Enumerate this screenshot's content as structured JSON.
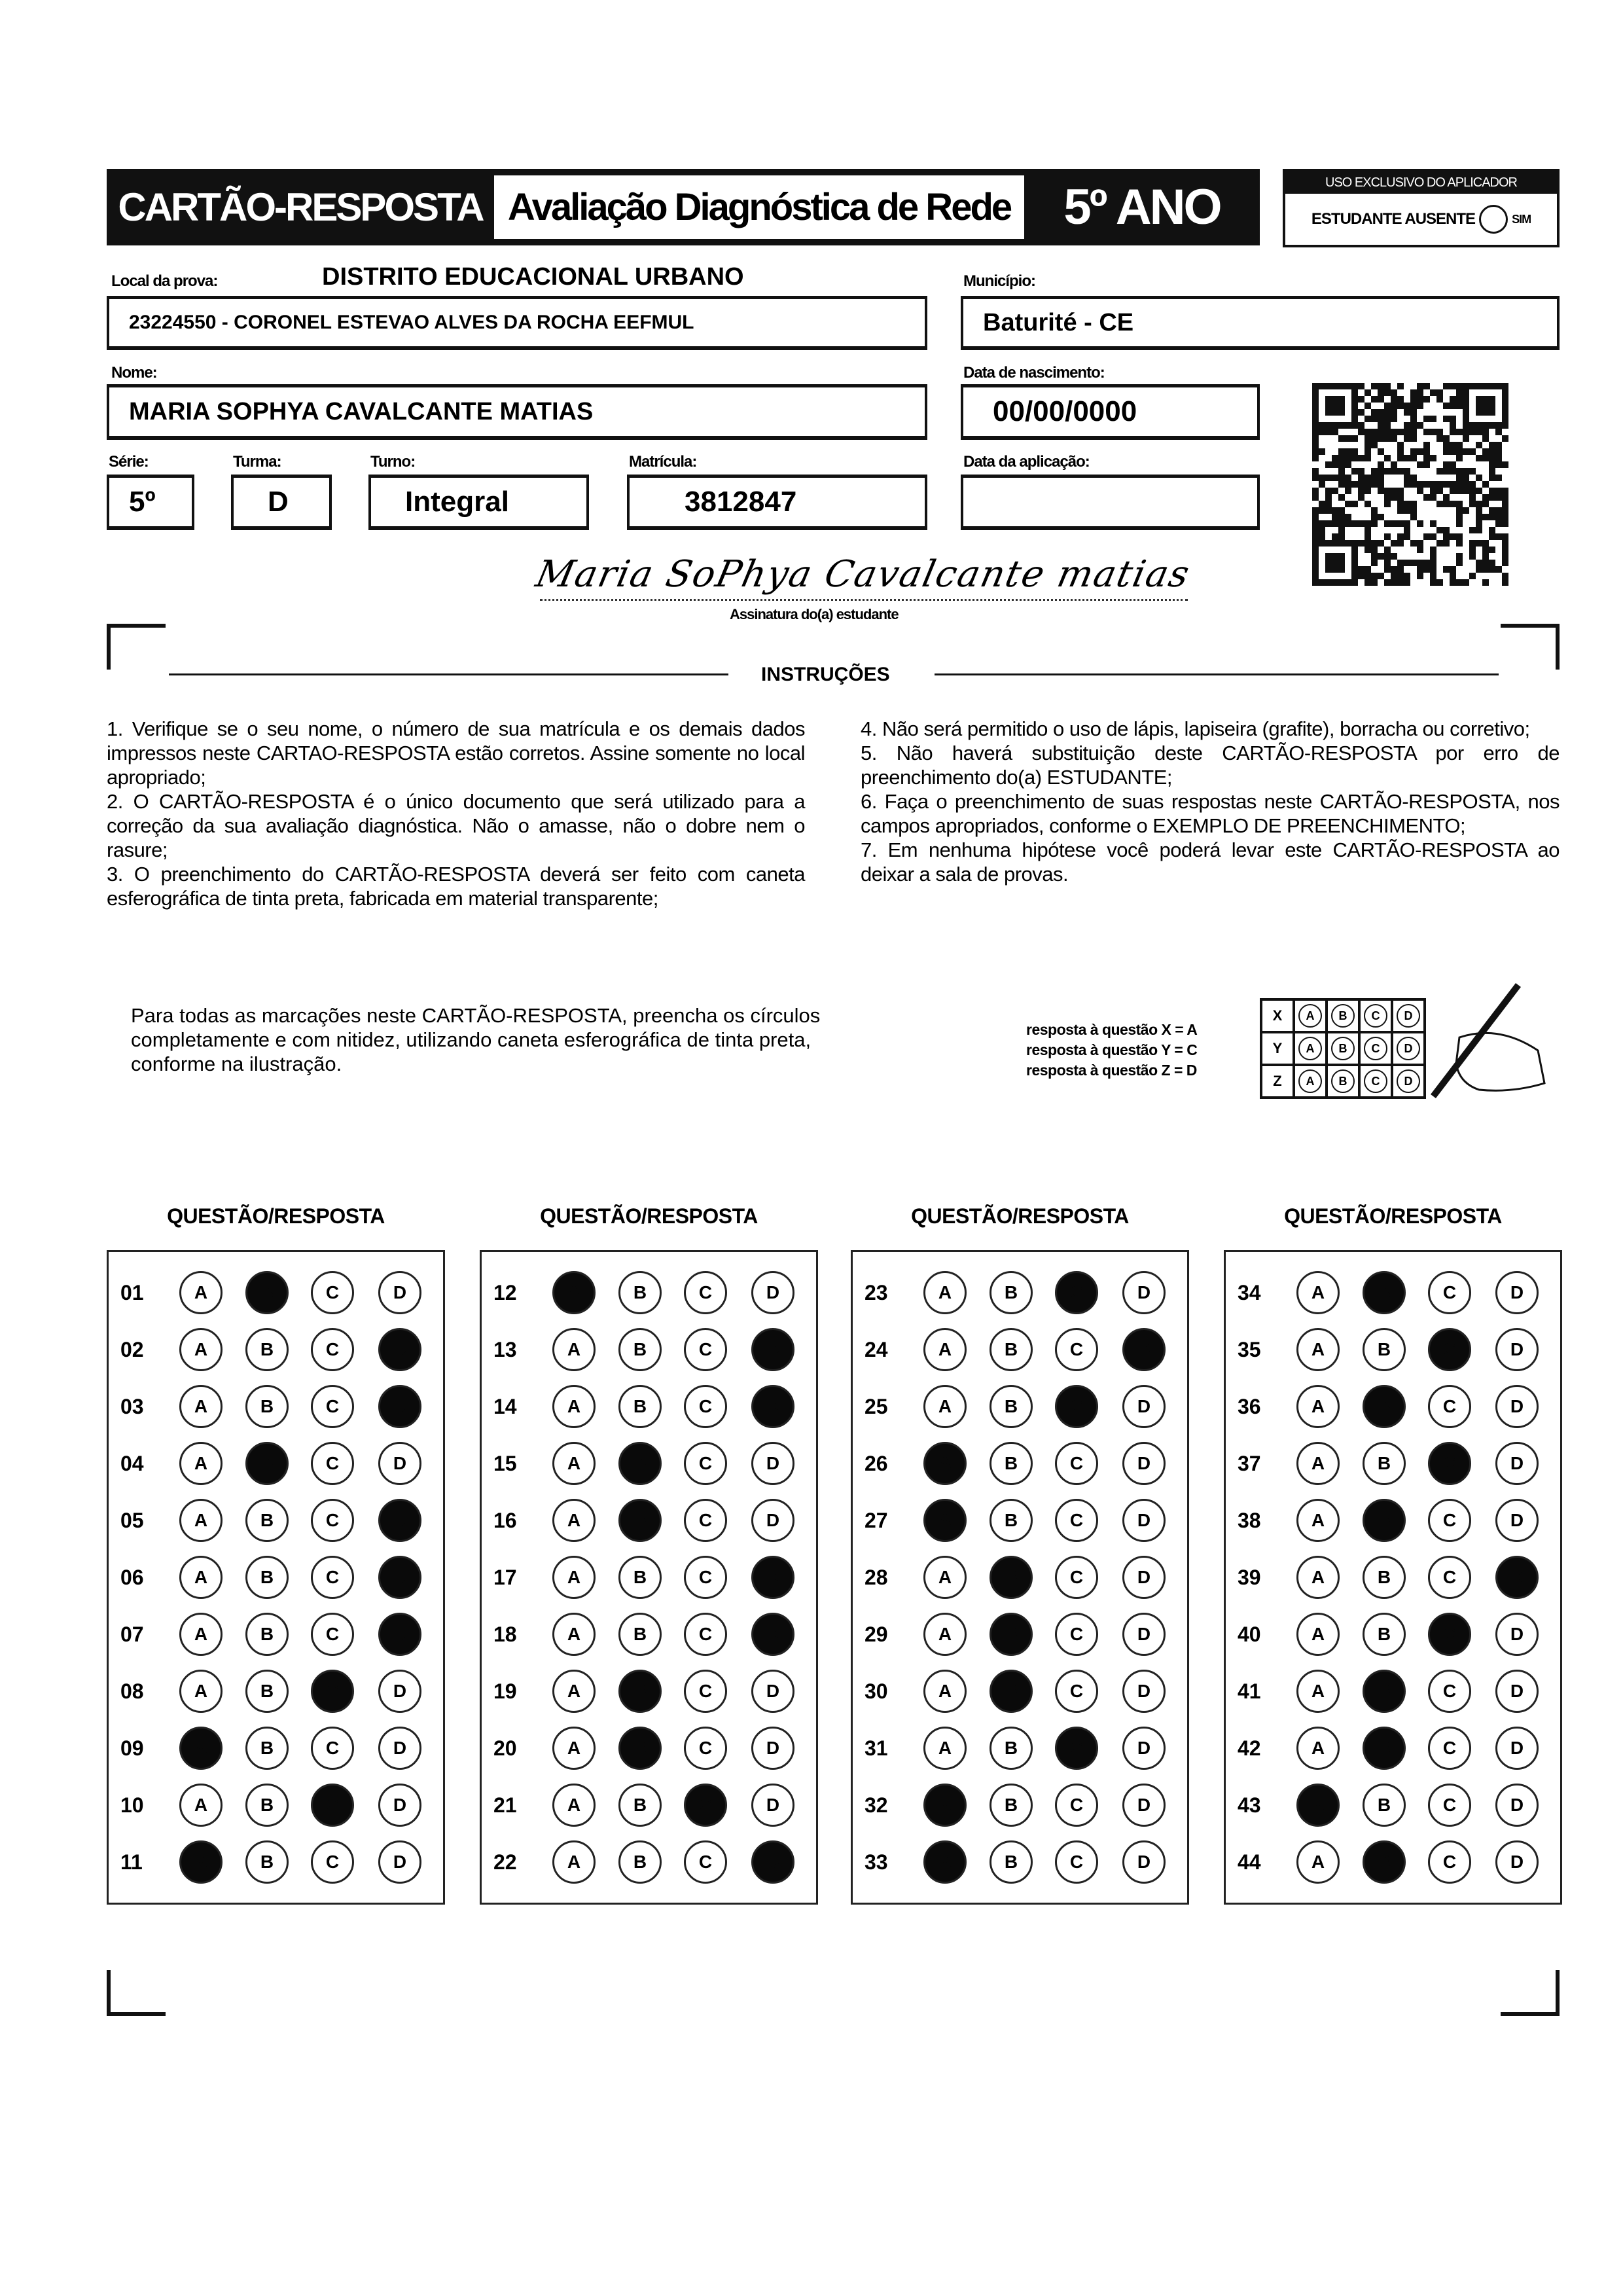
{
  "header": {
    "title": "CARTÃO-RESPOSTA",
    "subtitle": "Avaliação Diagnóstica de Rede",
    "grade": "5º ANO",
    "applicator_label": "USO EXCLUSIVO DO APLICADOR",
    "absent_label": "ESTUDANTE AUSENTE",
    "absent_option": "SIM"
  },
  "fields": {
    "local_label": "Local da prova:",
    "local_value": "DISTRITO EDUCACIONAL URBANO",
    "school": "23224550 - CORONEL ESTEVAO ALVES DA ROCHA EEFMUL",
    "municipio_label": "Município:",
    "municipio": "Baturité - CE",
    "nome_label": "Nome:",
    "nome": "MARIA SOPHYA CAVALCANTE MATIAS",
    "nasc_label": "Data de nascimento:",
    "nasc": "00/00/0000",
    "serie_label": "Série:",
    "serie": "5º",
    "turma_label": "Turma:",
    "turma": "D",
    "turno_label": "Turno:",
    "turno": "Integral",
    "matricula_label": "Matrícula:",
    "matricula": "3812847",
    "aplicacao_label": "Data da aplicação:",
    "aplicacao": "",
    "signature": "Maria SoPhya Cavalcante matias",
    "signature_label": "Assinatura do(a) estudante"
  },
  "instructions": {
    "title": "INSTRUÇÕES",
    "left": [
      "1. Verifique se o seu nome, o número de sua matrícula e os demais dados impressos neste CARTAO-RESPOSTA estão corretos. Assine somente no local apropriado;",
      "2. O CARTÃO-RESPOSTA é o único documento que será utilizado para a correção da sua avaliação diagnóstica. Não o amasse, não o dobre nem o rasure;",
      "3. O preenchimento do CARTÃO-RESPOSTA deverá ser feito com caneta esferográfica de tinta preta, fabricada em material transparente;"
    ],
    "right": [
      "4. Não será permitido o uso de lápis, lapiseira (grafite), borracha ou corretivo;",
      "5. Não haverá substituição deste CARTÃO-RESPOSTA por erro de preenchimento do(a) ESTUDANTE;",
      "6. Faça o preenchimento de suas respostas neste CARTÃO-RESPOSTA, nos campos apropriados, conforme o EXEMPLO DE PREENCHIMENTO;",
      "7. Em nenhuma hipótese você poderá levar este CARTÃO-RESPOSTA ao deixar a sala de provas."
    ]
  },
  "example": {
    "text": "Para todas as marcações neste CARTÃO-RESPOSTA, preencha os círculos completamente e com nitidez, utilizando caneta esferográfica de tinta preta, conforme na ilustração.",
    "legend": [
      "resposta à questão X = A",
      "resposta à questão Y = C",
      "resposta à questão Z = D"
    ],
    "rows": [
      {
        "q": "X",
        "mark": "A"
      },
      {
        "q": "Y",
        "mark": "C"
      },
      {
        "q": "Z",
        "mark": "D"
      }
    ]
  },
  "answers_heading": "QUESTÃO/RESPOSTA",
  "options": [
    "A",
    "B",
    "C",
    "D"
  ],
  "columns": [
    [
      {
        "n": "01",
        "m": "B"
      },
      {
        "n": "02",
        "m": "D"
      },
      {
        "n": "03",
        "m": "D"
      },
      {
        "n": "04",
        "m": "B"
      },
      {
        "n": "05",
        "m": "D"
      },
      {
        "n": "06",
        "m": "D"
      },
      {
        "n": "07",
        "m": "D"
      },
      {
        "n": "08",
        "m": "C"
      },
      {
        "n": "09",
        "m": "A"
      },
      {
        "n": "10",
        "m": "C"
      },
      {
        "n": "11",
        "m": "A"
      }
    ],
    [
      {
        "n": "12",
        "m": "A"
      },
      {
        "n": "13",
        "m": "D"
      },
      {
        "n": "14",
        "m": "D"
      },
      {
        "n": "15",
        "m": "B"
      },
      {
        "n": "16",
        "m": "B"
      },
      {
        "n": "17",
        "m": "D"
      },
      {
        "n": "18",
        "m": "D"
      },
      {
        "n": "19",
        "m": "B"
      },
      {
        "n": "20",
        "m": "B"
      },
      {
        "n": "21",
        "m": "C"
      },
      {
        "n": "22",
        "m": "D"
      }
    ],
    [
      {
        "n": "23",
        "m": "C"
      },
      {
        "n": "24",
        "m": "D"
      },
      {
        "n": "25",
        "m": "C"
      },
      {
        "n": "26",
        "m": "A"
      },
      {
        "n": "27",
        "m": "A"
      },
      {
        "n": "28",
        "m": "B"
      },
      {
        "n": "29",
        "m": "B"
      },
      {
        "n": "30",
        "m": "B"
      },
      {
        "n": "31",
        "m": "C"
      },
      {
        "n": "32",
        "m": "A"
      },
      {
        "n": "33",
        "m": "A"
      }
    ],
    [
      {
        "n": "34",
        "m": "B"
      },
      {
        "n": "35",
        "m": "C"
      },
      {
        "n": "36",
        "m": "B"
      },
      {
        "n": "37",
        "m": "C"
      },
      {
        "n": "38",
        "m": "B"
      },
      {
        "n": "39",
        "m": "D"
      },
      {
        "n": "40",
        "m": "C"
      },
      {
        "n": "41",
        "m": "B"
      },
      {
        "n": "42",
        "m": "B"
      },
      {
        "n": "43",
        "m": "A"
      },
      {
        "n": "44",
        "m": "B"
      }
    ]
  ]
}
